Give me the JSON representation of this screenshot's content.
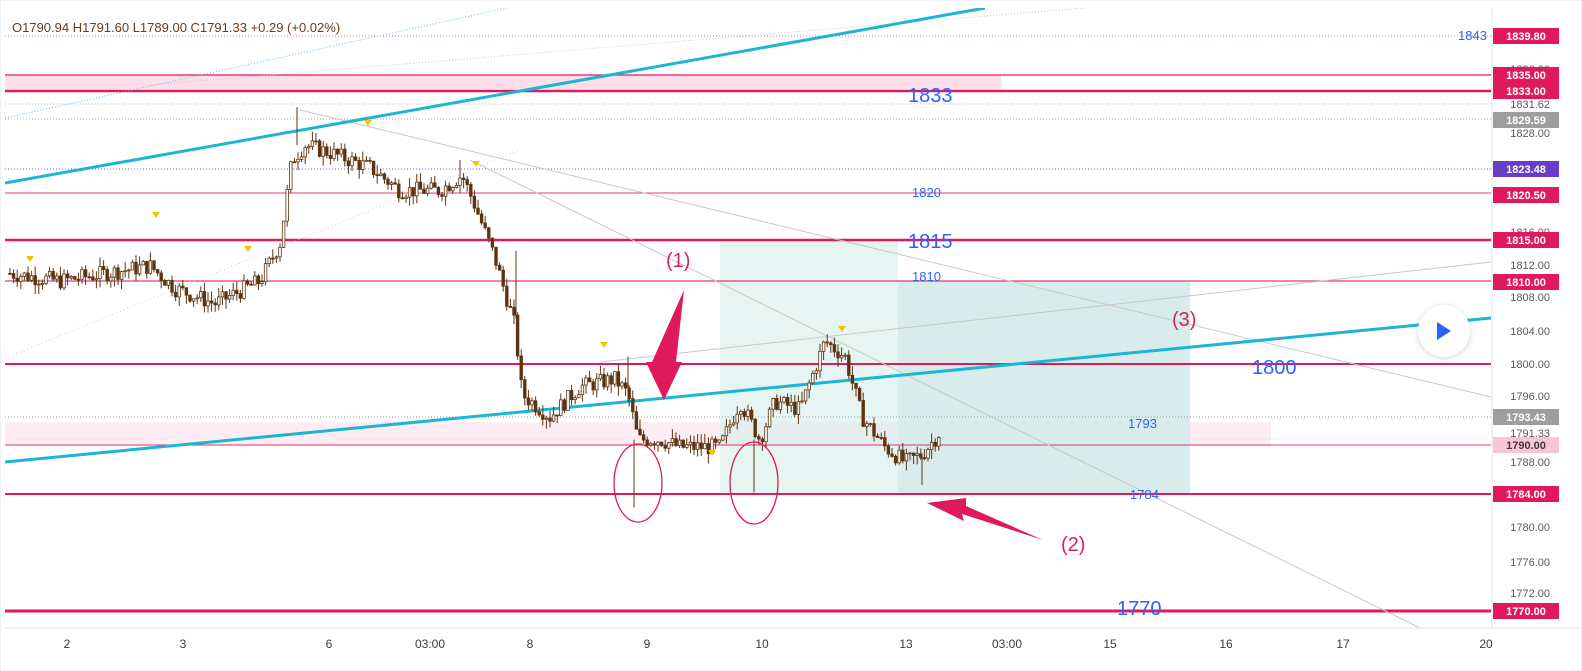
{
  "ohlc_header": "O1790.94 H1791.60 L1789.00 C1791.33 +0.29 (+0.02%)",
  "colors": {
    "candle": "#5d3412",
    "level": "#e0195c",
    "trend": "#1cb5d4",
    "zone": "#fcd6e3",
    "target": "#d6ecea",
    "label_blue": "#2962ff",
    "label_pink": "#d4235f",
    "active_label": "#6c3cc8",
    "gray_label": "#9e9e9e"
  },
  "chart_data": {
    "type": "candlestick",
    "y_range": [
      1767,
      1844
    ],
    "x_ticks": [
      "2",
      "3",
      "6",
      "03:00",
      "8",
      "9",
      "10",
      "13",
      "03:00",
      "15",
      "16",
      "17",
      "20"
    ],
    "y_ticks": [
      "1836.00",
      "1831.62",
      "1828.00",
      "1816.00",
      "1812.00",
      "1808.00",
      "1804.00",
      "1800.00",
      "1796.00",
      "1791.33",
      "1788.00",
      "1780.00",
      "1776.00",
      "1772.00"
    ],
    "price_tags": [
      {
        "text": "1839.80",
        "style": "level"
      },
      {
        "text": "1835.00",
        "style": "level"
      },
      {
        "text": "1833.00",
        "style": "level"
      },
      {
        "text": "1829.59",
        "style": "gray"
      },
      {
        "text": "1823.48",
        "style": "active"
      },
      {
        "text": "1820.50",
        "style": "level"
      },
      {
        "text": "1815.00",
        "style": "level"
      },
      {
        "text": "1810.00",
        "style": "level"
      },
      {
        "text": "1793.43",
        "style": "gray"
      },
      {
        "text": "1790.00",
        "style": "pink"
      },
      {
        "text": "1784.00",
        "style": "level"
      },
      {
        "text": "1770.00",
        "style": "level"
      }
    ],
    "level_labels": [
      {
        "text": "1843",
        "style": "small"
      },
      {
        "text": "1833",
        "style": "big"
      },
      {
        "text": "1820",
        "style": "small"
      },
      {
        "text": "1815",
        "style": "big"
      },
      {
        "text": "1810",
        "style": "small"
      },
      {
        "text": "1800",
        "style": "big"
      },
      {
        "text": "1793",
        "style": "small"
      },
      {
        "text": "1784",
        "style": "small"
      },
      {
        "text": "1770",
        "style": "big"
      }
    ],
    "annotations": [
      "(1)",
      "(2)",
      "(3)"
    ]
  }
}
